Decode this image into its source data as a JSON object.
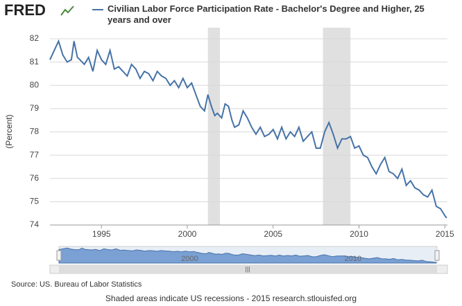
{
  "chart_data": {
    "type": "line",
    "logo": "FRED",
    "title": "Civilian Labor Force Participation Rate - Bachelor's Degree and Higher, 25 years and over",
    "y_label": "(Percent)",
    "source": "Source: US. Bureau of Labor Statistics",
    "footer": "Shaded areas indicate US recessions - 2015 research.stlouisfed.org",
    "x": [
      1992.0,
      1992.25,
      1992.5,
      1992.75,
      1993.0,
      1993.25,
      1993.4,
      1993.6,
      1993.75,
      1994.0,
      1994.25,
      1994.5,
      1994.75,
      1995.0,
      1995.25,
      1995.5,
      1995.75,
      1996.0,
      1996.25,
      1996.5,
      1996.75,
      1997.0,
      1997.25,
      1997.5,
      1997.75,
      1998.0,
      1998.25,
      1998.5,
      1998.75,
      1999.0,
      1999.25,
      1999.5,
      1999.75,
      2000.0,
      2000.25,
      2000.5,
      2000.75,
      2001.0,
      2001.2,
      2001.4,
      2001.6,
      2001.75,
      2002.0,
      2002.2,
      2002.4,
      2002.6,
      2002.75,
      2003.0,
      2003.25,
      2003.5,
      2003.75,
      2004.0,
      2004.25,
      2004.5,
      2004.75,
      2005.0,
      2005.25,
      2005.5,
      2005.75,
      2006.0,
      2006.25,
      2006.5,
      2006.75,
      2007.0,
      2007.25,
      2007.5,
      2007.75,
      2008.0,
      2008.25,
      2008.5,
      2008.75,
      2009.0,
      2009.25,
      2009.5,
      2009.75,
      2010.0,
      2010.25,
      2010.5,
      2010.75,
      2011.0,
      2011.25,
      2011.5,
      2011.75,
      2012.0,
      2012.25,
      2012.5,
      2012.75,
      2013.0,
      2013.25,
      2013.5,
      2013.75,
      2014.0,
      2014.25,
      2014.5,
      2014.75,
      2015.0,
      2015.1
    ],
    "series": [
      {
        "name": "Civilian Labor Force Participation Rate - Bachelor's Degree and Higher, 25 years and over",
        "color": "#4572a7",
        "values": [
          81.1,
          81.5,
          81.9,
          81.3,
          81.0,
          81.1,
          81.9,
          81.2,
          81.1,
          80.9,
          81.2,
          80.6,
          81.5,
          81.1,
          80.9,
          81.5,
          80.7,
          80.8,
          80.6,
          80.4,
          80.9,
          80.7,
          80.3,
          80.6,
          80.5,
          80.2,
          80.6,
          80.4,
          80.3,
          80.0,
          80.2,
          79.9,
          80.3,
          79.9,
          80.1,
          79.6,
          79.1,
          78.9,
          79.6,
          79.1,
          78.7,
          78.8,
          78.6,
          79.2,
          79.1,
          78.5,
          78.2,
          78.3,
          78.9,
          78.6,
          78.2,
          77.9,
          78.2,
          77.8,
          77.9,
          78.1,
          77.7,
          78.2,
          77.7,
          78.0,
          77.8,
          78.2,
          77.6,
          77.8,
          78.0,
          77.3,
          77.3,
          78.0,
          78.4,
          77.9,
          77.3,
          77.7,
          77.7,
          77.8,
          77.3,
          77.4,
          77.0,
          76.9,
          76.5,
          76.2,
          76.6,
          76.9,
          76.3,
          76.2,
          76.0,
          76.4,
          75.7,
          75.9,
          75.6,
          75.5,
          75.3,
          75.2,
          75.5,
          74.8,
          74.7,
          74.4,
          74.3
        ]
      }
    ],
    "recessions": [
      [
        2001.2,
        2001.9
      ],
      [
        2007.9,
        2009.5
      ]
    ],
    "xlim": [
      1992.0,
      2015.15
    ],
    "xticks": [
      1995,
      2000,
      2005,
      2010,
      2015
    ],
    "ylim": [
      74,
      82
    ],
    "yticks": [
      74,
      75,
      76,
      77,
      78,
      79,
      80,
      81,
      82
    ],
    "navigator_xticks": [
      2000,
      2010
    ],
    "grid": true
  }
}
